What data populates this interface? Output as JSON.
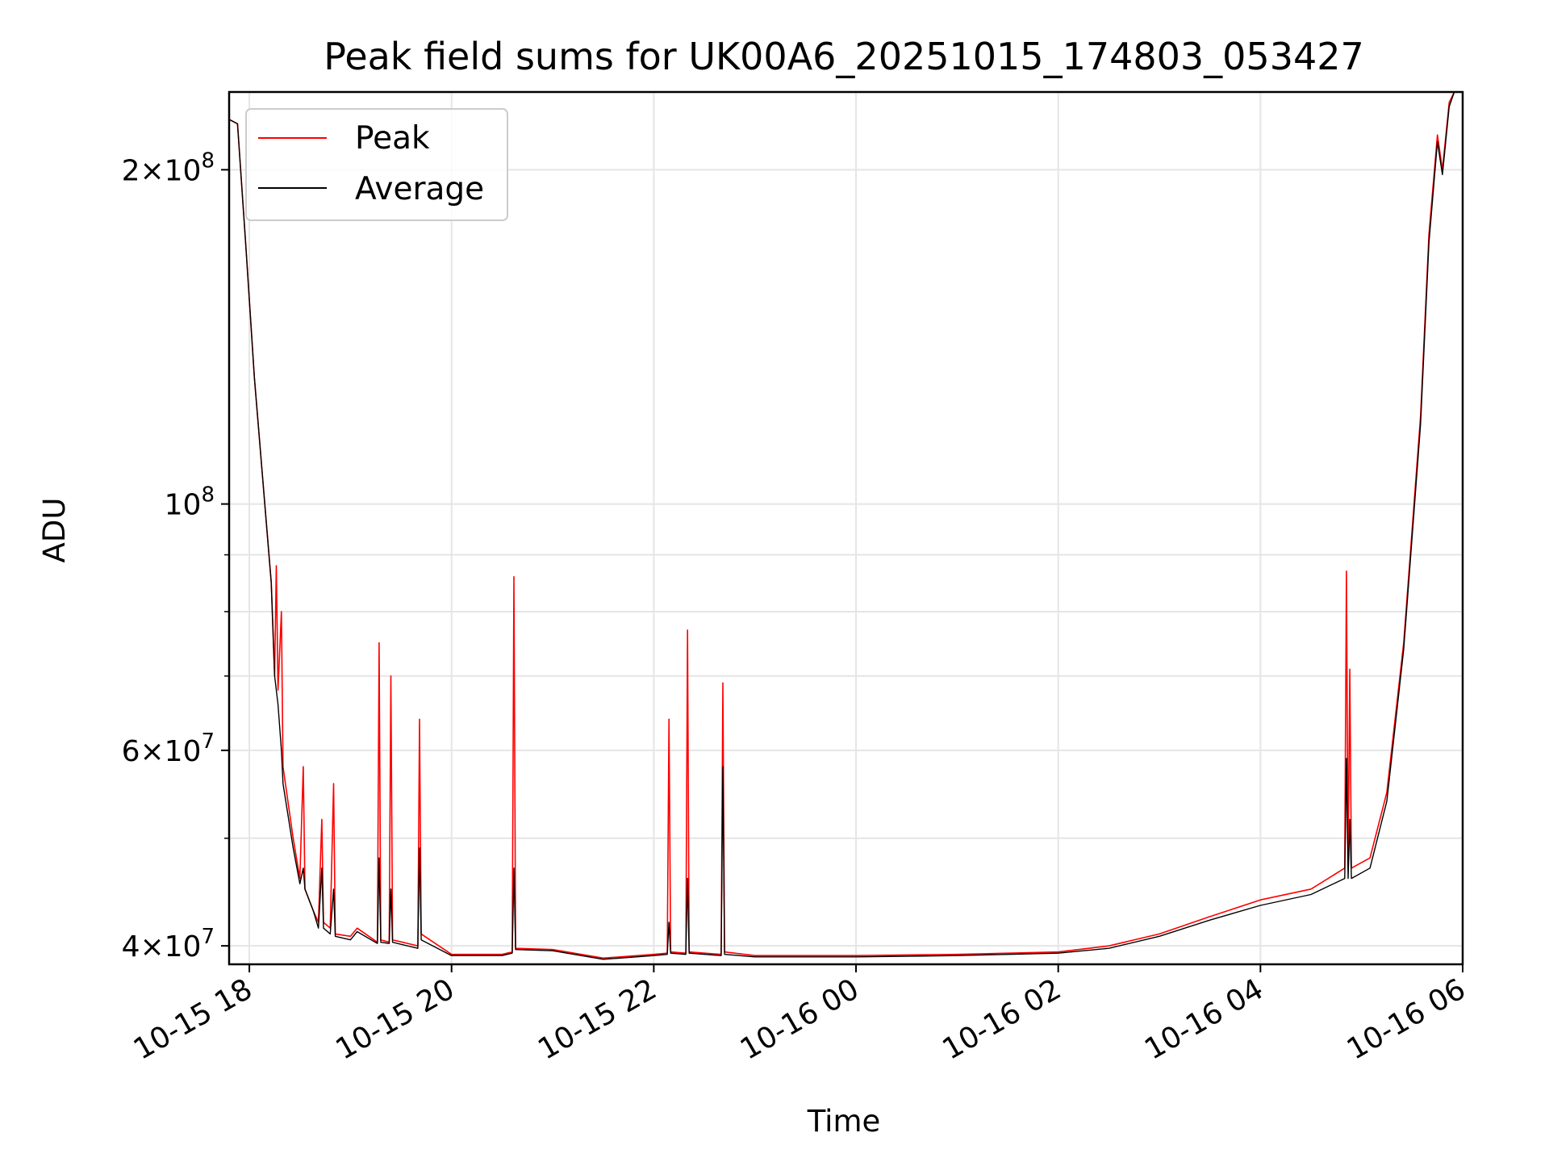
{
  "chart_data": {
    "type": "line",
    "title": "Peak field sums for UK00A6_20251015_174803_053427",
    "xlabel": "Time",
    "ylabel": "ADU",
    "y_scale": "log",
    "ylim": [
      38500000,
      235000000
    ],
    "xlim": [
      "2025-10-15T17:48",
      "2025-10-16T06:00"
    ],
    "x_ticks": [
      {
        "value": "2025-10-15T18:00",
        "label": "10-15 18"
      },
      {
        "value": "2025-10-15T20:00",
        "label": "10-15 20"
      },
      {
        "value": "2025-10-15T22:00",
        "label": "10-15 22"
      },
      {
        "value": "2025-10-16T00:00",
        "label": "10-16 00"
      },
      {
        "value": "2025-10-16T02:00",
        "label": "10-16 02"
      },
      {
        "value": "2025-10-16T04:00",
        "label": "10-16 04"
      },
      {
        "value": "2025-10-16T06:00",
        "label": "10-16 06"
      }
    ],
    "y_major_ticks": [
      {
        "value": 40000000,
        "mantissa": "4",
        "exponent": "7"
      },
      {
        "value": 60000000,
        "mantissa": "6",
        "exponent": "7"
      },
      {
        "value": 100000000,
        "mantissa": "",
        "exponent": "8"
      },
      {
        "value": 200000000,
        "mantissa": "2",
        "exponent": "8"
      }
    ],
    "y_minor_ticks": [
      50000000,
      70000000,
      80000000,
      90000000
    ],
    "grid": true,
    "legend_position": "top-left",
    "series": [
      {
        "name": "Peak",
        "color": "#ff0000",
        "points": [
          [
            "2025-10-15T17:48",
            222000000
          ],
          [
            "2025-10-15T17:53",
            220000000
          ],
          [
            "2025-10-15T17:58",
            170000000
          ],
          [
            "2025-10-15T18:03",
            130000000
          ],
          [
            "2025-10-15T18:08",
            105000000
          ],
          [
            "2025-10-15T18:13",
            85000000
          ],
          [
            "2025-10-15T18:15",
            70000000
          ],
          [
            "2025-10-15T18:16",
            88000000
          ],
          [
            "2025-10-15T18:17",
            68000000
          ],
          [
            "2025-10-15T18:19",
            80000000
          ],
          [
            "2025-10-15T18:20",
            58000000
          ],
          [
            "2025-10-15T18:26",
            50000000
          ],
          [
            "2025-10-15T18:30",
            46000000
          ],
          [
            "2025-10-15T18:32",
            58000000
          ],
          [
            "2025-10-15T18:33",
            45000000
          ],
          [
            "2025-10-15T18:38",
            43000000
          ],
          [
            "2025-10-15T18:41",
            42000000
          ],
          [
            "2025-10-15T18:43",
            52000000
          ],
          [
            "2025-10-15T18:44",
            42000000
          ],
          [
            "2025-10-15T18:48",
            41500000
          ],
          [
            "2025-10-15T18:50",
            56000000
          ],
          [
            "2025-10-15T18:51",
            41000000
          ],
          [
            "2025-10-15T19:00",
            40800000
          ],
          [
            "2025-10-15T19:04",
            41500000
          ],
          [
            "2025-10-15T19:16",
            40300000
          ],
          [
            "2025-10-15T19:17",
            75000000
          ],
          [
            "2025-10-15T19:18",
            40500000
          ],
          [
            "2025-10-15T19:23",
            40300000
          ],
          [
            "2025-10-15T19:24",
            70000000
          ],
          [
            "2025-10-15T19:25",
            40500000
          ],
          [
            "2025-10-15T19:40",
            40000000
          ],
          [
            "2025-10-15T19:41",
            64000000
          ],
          [
            "2025-10-15T19:42",
            41000000
          ],
          [
            "2025-10-15T20:00",
            39300000
          ],
          [
            "2025-10-15T20:30",
            39300000
          ],
          [
            "2025-10-15T20:36",
            39500000
          ],
          [
            "2025-10-15T20:37",
            86000000
          ],
          [
            "2025-10-15T20:38",
            39800000
          ],
          [
            "2025-10-15T21:00",
            39700000
          ],
          [
            "2025-10-15T21:30",
            39000000
          ],
          [
            "2025-10-15T22:00",
            39300000
          ],
          [
            "2025-10-15T22:08",
            39400000
          ],
          [
            "2025-10-15T22:09",
            64000000
          ],
          [
            "2025-10-15T22:10",
            39500000
          ],
          [
            "2025-10-15T22:19",
            39400000
          ],
          [
            "2025-10-15T22:20",
            77000000
          ],
          [
            "2025-10-15T22:21",
            39500000
          ],
          [
            "2025-10-15T22:40",
            39300000
          ],
          [
            "2025-10-15T22:41",
            69000000
          ],
          [
            "2025-10-15T22:42",
            39500000
          ],
          [
            "2025-10-15T23:00",
            39200000
          ],
          [
            "2025-10-16T00:00",
            39200000
          ],
          [
            "2025-10-16T01:00",
            39300000
          ],
          [
            "2025-10-16T02:00",
            39500000
          ],
          [
            "2025-10-16T02:30",
            40000000
          ],
          [
            "2025-10-16T03:00",
            41000000
          ],
          [
            "2025-10-16T03:30",
            42500000
          ],
          [
            "2025-10-16T04:00",
            44000000
          ],
          [
            "2025-10-16T04:30",
            45000000
          ],
          [
            "2025-10-16T04:50",
            47000000
          ],
          [
            "2025-10-16T04:51",
            87000000
          ],
          [
            "2025-10-16T04:52",
            47000000
          ],
          [
            "2025-10-16T04:53",
            71000000
          ],
          [
            "2025-10-16T04:54",
            47000000
          ],
          [
            "2025-10-16T05:05",
            48000000
          ],
          [
            "2025-10-16T05:15",
            55000000
          ],
          [
            "2025-10-16T05:25",
            75000000
          ],
          [
            "2025-10-16T05:35",
            120000000
          ],
          [
            "2025-10-16T05:40",
            175000000
          ],
          [
            "2025-10-16T05:45",
            215000000
          ],
          [
            "2025-10-16T05:48",
            200000000
          ],
          [
            "2025-10-16T05:52",
            230000000
          ],
          [
            "2025-10-16T05:55",
            235000000
          ]
        ]
      },
      {
        "name": "Average",
        "color": "#000000",
        "points": [
          [
            "2025-10-15T17:48",
            222000000
          ],
          [
            "2025-10-15T17:53",
            220000000
          ],
          [
            "2025-10-15T17:58",
            170000000
          ],
          [
            "2025-10-15T18:03",
            130000000
          ],
          [
            "2025-10-15T18:08",
            105000000
          ],
          [
            "2025-10-15T18:13",
            85000000
          ],
          [
            "2025-10-15T18:15",
            70000000
          ],
          [
            "2025-10-15T18:17",
            66000000
          ],
          [
            "2025-10-15T18:19",
            60000000
          ],
          [
            "2025-10-15T18:20",
            56000000
          ],
          [
            "2025-10-15T18:26",
            49000000
          ],
          [
            "2025-10-15T18:30",
            45500000
          ],
          [
            "2025-10-15T18:32",
            47000000
          ],
          [
            "2025-10-15T18:33",
            45000000
          ],
          [
            "2025-10-15T18:38",
            43000000
          ],
          [
            "2025-10-15T18:41",
            41500000
          ],
          [
            "2025-10-15T18:43",
            47000000
          ],
          [
            "2025-10-15T18:44",
            41500000
          ],
          [
            "2025-10-15T18:48",
            41000000
          ],
          [
            "2025-10-15T18:50",
            45000000
          ],
          [
            "2025-10-15T18:51",
            40800000
          ],
          [
            "2025-10-15T19:00",
            40500000
          ],
          [
            "2025-10-15T19:04",
            41200000
          ],
          [
            "2025-10-15T19:16",
            40200000
          ],
          [
            "2025-10-15T19:17",
            48000000
          ],
          [
            "2025-10-15T19:18",
            40300000
          ],
          [
            "2025-10-15T19:23",
            40200000
          ],
          [
            "2025-10-15T19:24",
            45000000
          ],
          [
            "2025-10-15T19:25",
            40300000
          ],
          [
            "2025-10-15T19:40",
            39800000
          ],
          [
            "2025-10-15T19:41",
            49000000
          ],
          [
            "2025-10-15T19:42",
            40500000
          ],
          [
            "2025-10-15T20:00",
            39200000
          ],
          [
            "2025-10-15T20:30",
            39200000
          ],
          [
            "2025-10-15T20:36",
            39400000
          ],
          [
            "2025-10-15T20:37",
            47000000
          ],
          [
            "2025-10-15T20:38",
            39700000
          ],
          [
            "2025-10-15T21:00",
            39600000
          ],
          [
            "2025-10-15T21:30",
            38900000
          ],
          [
            "2025-10-15T22:00",
            39200000
          ],
          [
            "2025-10-15T22:08",
            39300000
          ],
          [
            "2025-10-15T22:09",
            42000000
          ],
          [
            "2025-10-15T22:10",
            39400000
          ],
          [
            "2025-10-15T22:19",
            39300000
          ],
          [
            "2025-10-15T22:20",
            46000000
          ],
          [
            "2025-10-15T22:21",
            39400000
          ],
          [
            "2025-10-15T22:40",
            39200000
          ],
          [
            "2025-10-15T22:41",
            58000000
          ],
          [
            "2025-10-15T22:42",
            39300000
          ],
          [
            "2025-10-15T23:00",
            39100000
          ],
          [
            "2025-10-16T00:00",
            39100000
          ],
          [
            "2025-10-16T01:00",
            39200000
          ],
          [
            "2025-10-16T02:00",
            39400000
          ],
          [
            "2025-10-16T02:30",
            39800000
          ],
          [
            "2025-10-16T03:00",
            40800000
          ],
          [
            "2025-10-16T03:30",
            42200000
          ],
          [
            "2025-10-16T04:00",
            43500000
          ],
          [
            "2025-10-16T04:30",
            44500000
          ],
          [
            "2025-10-16T04:50",
            46000000
          ],
          [
            "2025-10-16T04:51",
            59000000
          ],
          [
            "2025-10-16T04:52",
            46000000
          ],
          [
            "2025-10-16T04:53",
            52000000
          ],
          [
            "2025-10-16T04:54",
            46000000
          ],
          [
            "2025-10-16T05:05",
            47000000
          ],
          [
            "2025-10-16T05:15",
            54000000
          ],
          [
            "2025-10-16T05:25",
            74000000
          ],
          [
            "2025-10-16T05:35",
            118000000
          ],
          [
            "2025-10-16T05:40",
            172000000
          ],
          [
            "2025-10-16T05:45",
            212000000
          ],
          [
            "2025-10-16T05:48",
            198000000
          ],
          [
            "2025-10-16T05:52",
            228000000
          ],
          [
            "2025-10-16T05:55",
            235000000
          ]
        ]
      }
    ]
  }
}
